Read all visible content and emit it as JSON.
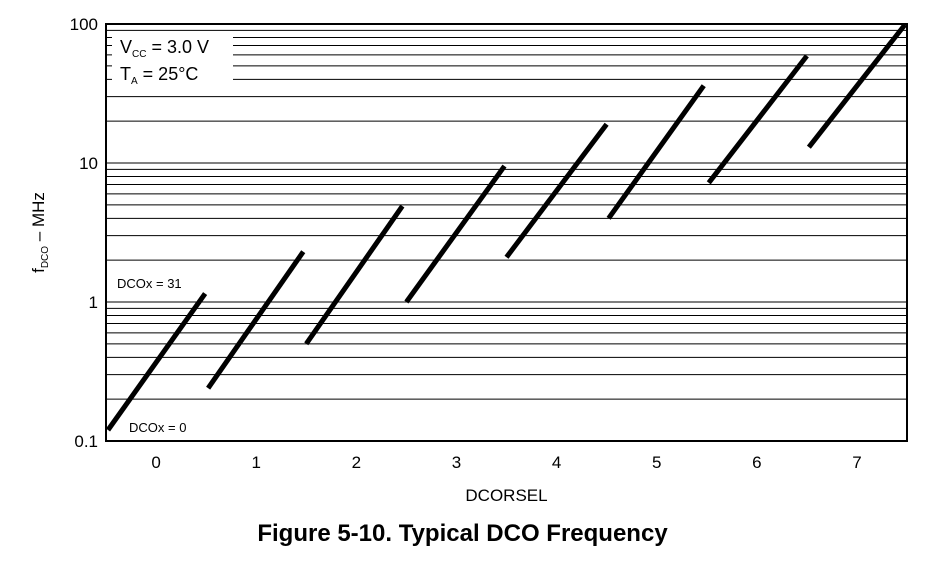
{
  "figure_caption": "Figure 5-10. Typical DCO Frequency",
  "chart_data": {
    "type": "line",
    "title": "",
    "xlabel": "DCORSEL",
    "ylabel": "f",
    "ylabel_sub": "DCO",
    "ylabel_suffix": " – MHz",
    "x_ticks": [
      "0",
      "1",
      "2",
      "3",
      "4",
      "5",
      "6",
      "7"
    ],
    "xlim": [
      -0.5,
      7.5
    ],
    "y_scale": "log",
    "ylim": [
      0.1,
      100
    ],
    "y_ticks": [
      "0.1",
      "1",
      "10",
      "100"
    ],
    "grid": "horizontal log minor gridlines",
    "conditions": {
      "vcc_main": "V",
      "vcc_sub": "CC",
      "vcc_value": " = 3.0 V",
      "ta_main": "T",
      "ta_sub": "A",
      "ta_value": " = 25°C"
    },
    "annotations": {
      "dcox_max": "DCOx = 31",
      "dcox_min": "DCOx = 0"
    },
    "series": [
      {
        "dcorsel": 0,
        "x": [
          -0.48,
          0.49
        ],
        "y": [
          0.12,
          1.15
        ]
      },
      {
        "dcorsel": 1,
        "x": [
          0.52,
          1.47
        ],
        "y": [
          0.24,
          2.3
        ]
      },
      {
        "dcorsel": 2,
        "x": [
          1.5,
          2.46
        ],
        "y": [
          0.5,
          4.9
        ]
      },
      {
        "dcorsel": 3,
        "x": [
          2.5,
          3.48
        ],
        "y": [
          1.0,
          9.5
        ]
      },
      {
        "dcorsel": 4,
        "x": [
          3.5,
          4.5
        ],
        "y": [
          2.1,
          19.0
        ]
      },
      {
        "dcorsel": 5,
        "x": [
          4.52,
          5.47
        ],
        "y": [
          4.0,
          36.0
        ]
      },
      {
        "dcorsel": 6,
        "x": [
          5.52,
          6.5
        ],
        "y": [
          7.2,
          59.0
        ]
      },
      {
        "dcorsel": 7,
        "x": [
          6.52,
          7.48
        ],
        "y": [
          13.0,
          99.0
        ]
      }
    ]
  }
}
